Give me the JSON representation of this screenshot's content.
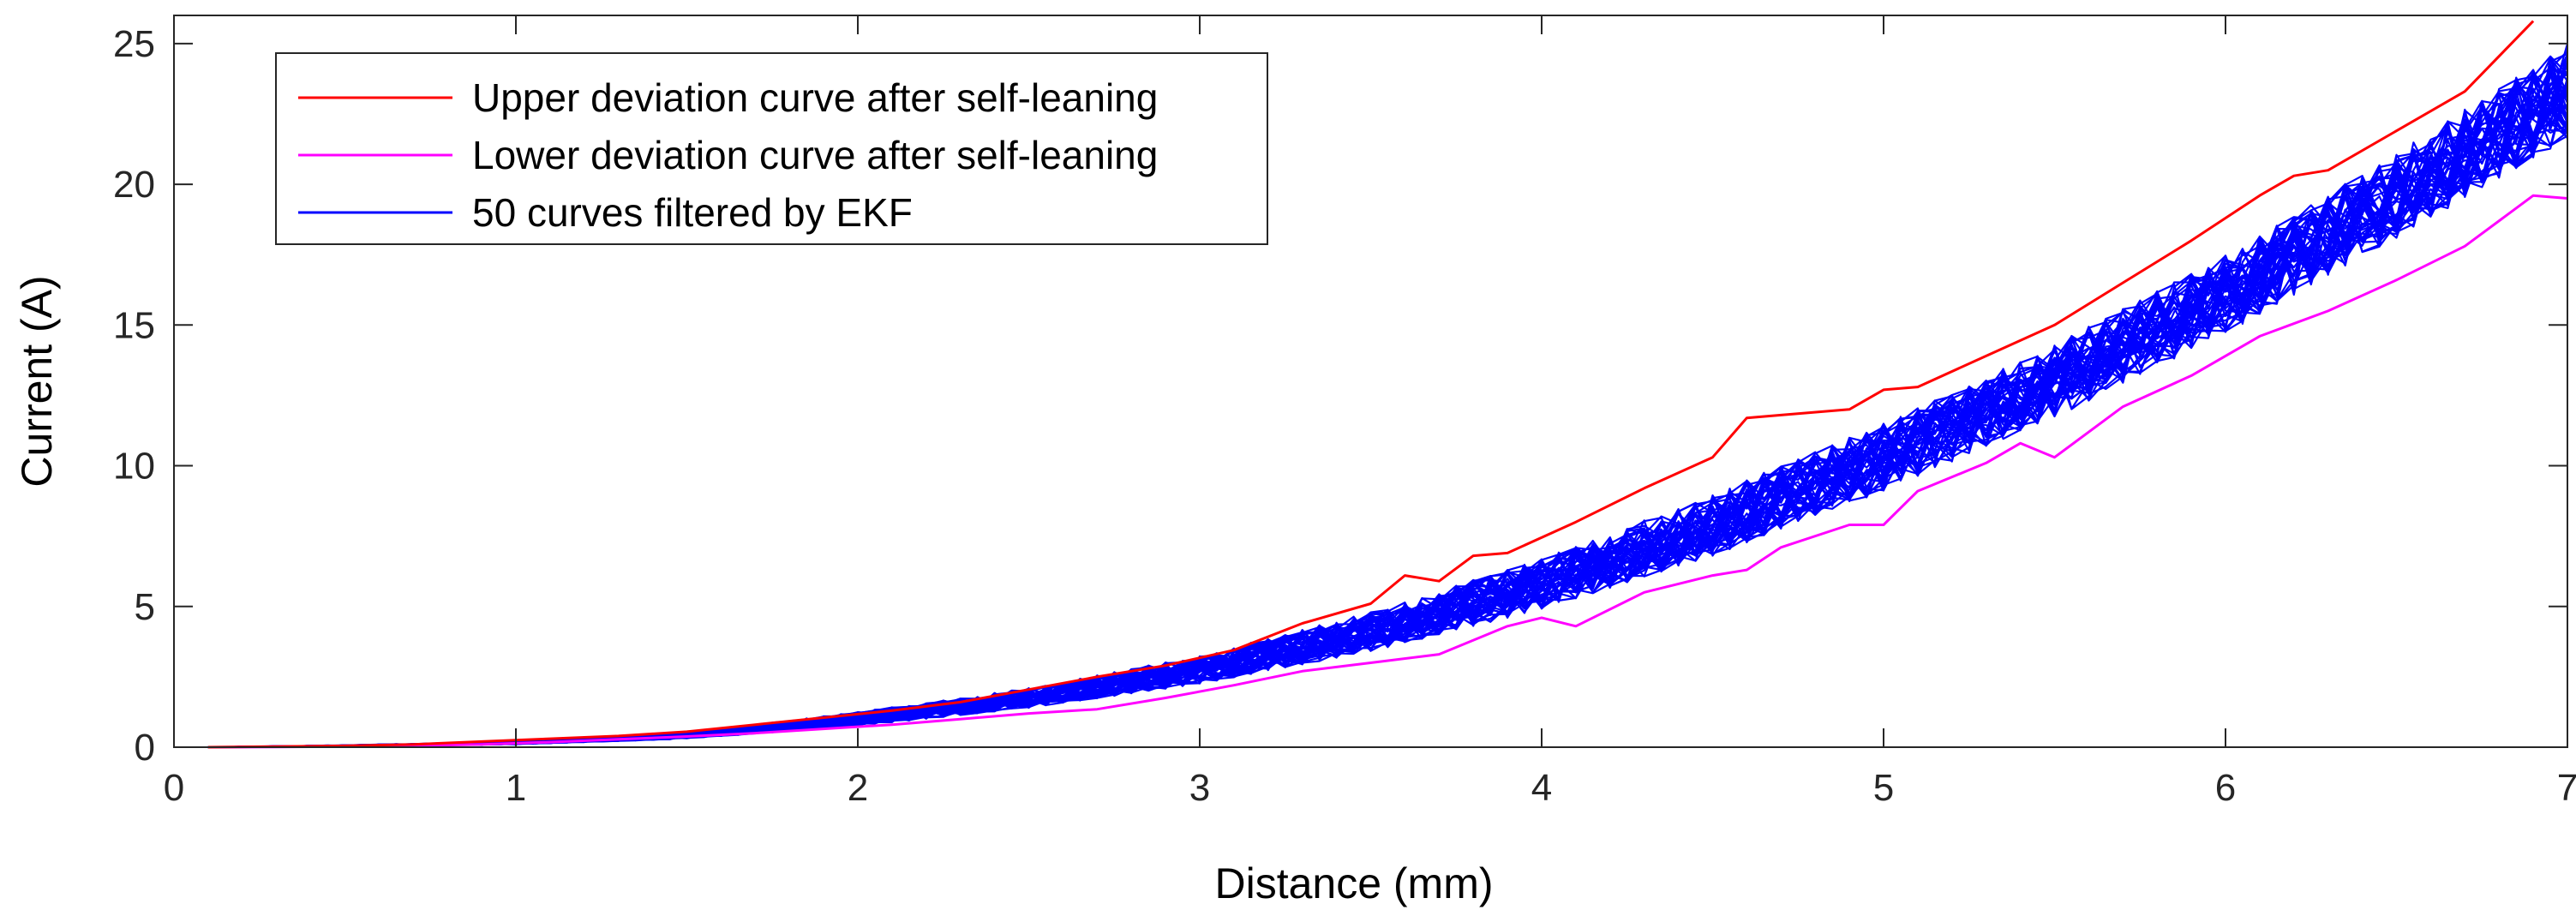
{
  "chart_data": {
    "type": "line",
    "title": "",
    "xlabel": "Distance (mm)",
    "ylabel": "Current (A)",
    "xlim": [
      0,
      7
    ],
    "ylim": [
      0,
      26
    ],
    "xticks": [
      0,
      1,
      2,
      3,
      4,
      5,
      6,
      7
    ],
    "yticks": [
      0,
      5,
      10,
      15,
      20,
      25
    ],
    "grid": false,
    "legend_position": "top-left",
    "colors": {
      "upper": "#ff0000",
      "lower": "#ff00ff",
      "ekf": "#0000ff",
      "axis": "#262626"
    },
    "legend": [
      {
        "key": "upper",
        "label": "Upper deviation curve after self-leaning"
      },
      {
        "key": "lower",
        "label": "Lower deviation curve after self-leaning"
      },
      {
        "key": "ekf",
        "label": "50 curves filtered by EKF"
      }
    ],
    "series": [
      {
        "key": "upper",
        "name": "Upper deviation curve after self-leaning",
        "x": [
          0.1,
          0.3,
          0.5,
          0.7,
          0.9,
          1.1,
          1.3,
          1.5,
          1.7,
          1.9,
          2.1,
          2.3,
          2.5,
          2.7,
          2.9,
          3.1,
          3.3,
          3.5,
          3.6,
          3.7,
          3.8,
          3.9,
          4.1,
          4.3,
          4.5,
          4.6,
          4.7,
          4.9,
          5.0,
          5.1,
          5.3,
          5.5,
          5.7,
          5.9,
          6.1,
          6.2,
          6.3,
          6.5,
          6.7,
          6.9
        ],
        "values": [
          0.0,
          0.02,
          0.05,
          0.1,
          0.2,
          0.3,
          0.4,
          0.55,
          0.8,
          1.05,
          1.3,
          1.6,
          2.05,
          2.5,
          2.9,
          3.45,
          4.4,
          5.1,
          6.1,
          5.9,
          6.8,
          6.9,
          8.0,
          9.2,
          10.3,
          11.7,
          11.8,
          12.0,
          12.7,
          12.8,
          13.9,
          15.0,
          16.5,
          18.0,
          19.6,
          20.3,
          20.5,
          21.9,
          23.3,
          25.8
        ]
      },
      {
        "key": "lower",
        "name": "Lower deviation curve after self-leaning",
        "x": [
          0.1,
          0.3,
          0.5,
          0.7,
          0.9,
          1.1,
          1.3,
          1.5,
          1.7,
          1.9,
          2.1,
          2.3,
          2.5,
          2.7,
          2.9,
          3.1,
          3.3,
          3.5,
          3.7,
          3.9,
          4.0,
          4.1,
          4.3,
          4.5,
          4.6,
          4.7,
          4.9,
          5.0,
          5.1,
          5.3,
          5.4,
          5.5,
          5.7,
          5.9,
          6.1,
          6.3,
          6.5,
          6.7,
          6.9,
          7.0
        ],
        "values": [
          0.0,
          0.01,
          0.02,
          0.05,
          0.1,
          0.18,
          0.28,
          0.38,
          0.5,
          0.65,
          0.8,
          1.0,
          1.2,
          1.35,
          1.75,
          2.2,
          2.7,
          3.0,
          3.3,
          4.3,
          4.6,
          4.3,
          5.5,
          6.1,
          6.3,
          7.1,
          7.9,
          7.9,
          9.1,
          10.1,
          10.8,
          10.3,
          12.1,
          13.2,
          14.6,
          15.5,
          16.6,
          17.8,
          19.6,
          19.5
        ]
      },
      {
        "key": "ekf",
        "name": "50 curves filtered by EKF",
        "count": 50,
        "x": [
          0.1,
          0.5,
          1.0,
          1.5,
          2.0,
          2.5,
          3.0,
          3.5,
          4.0,
          4.5,
          5.0,
          5.5,
          6.0,
          6.5,
          7.0
        ],
        "values": [
          0.0,
          0.05,
          0.15,
          0.4,
          1.0,
          1.75,
          2.75,
          4.1,
          5.8,
          7.9,
          10.3,
          13.0,
          16.1,
          19.6,
          23.3
        ],
        "spread": [
          0.0,
          0.02,
          0.05,
          0.1,
          0.25,
          0.35,
          0.5,
          0.7,
          0.9,
          1.1,
          1.2,
          1.3,
          1.4,
          1.5,
          1.7
        ]
      }
    ]
  }
}
